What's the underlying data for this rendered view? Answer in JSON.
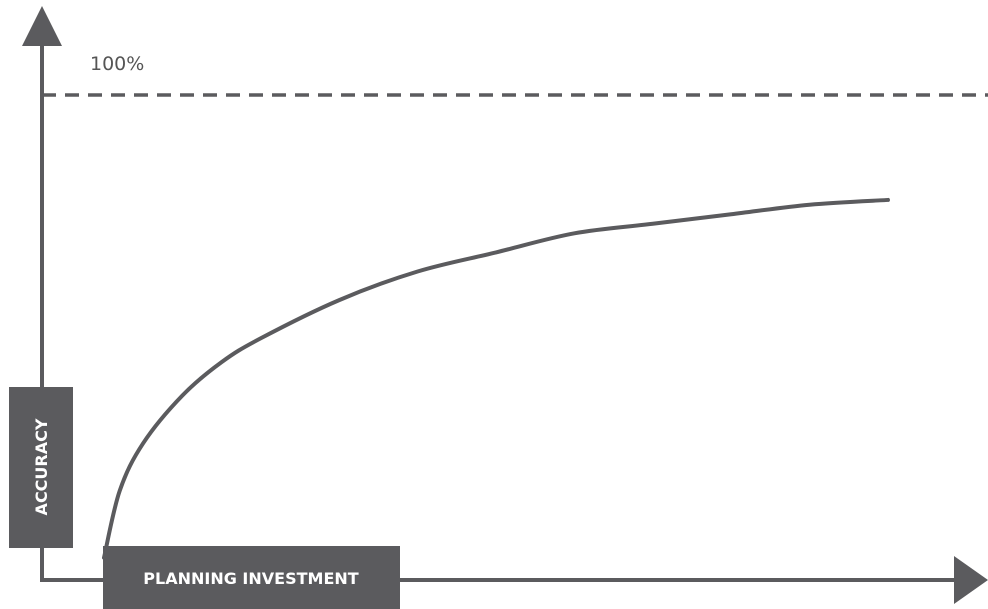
{
  "chart_data": {
    "type": "line",
    "title": "",
    "xlabel": "PLANNING INVESTMENT",
    "ylabel": "ACCURACY",
    "xlim": [
      0,
      100
    ],
    "ylim": [
      0,
      100
    ],
    "grid": false,
    "reference_line": {
      "y": 100,
      "label": "100%",
      "style": "dashed"
    },
    "series": [
      {
        "x": [
          0,
          2,
          5,
          10,
          15,
          20,
          30,
          40,
          50,
          60,
          70,
          80,
          90,
          100
        ],
        "values": [
          3,
          17,
          27,
          37,
          44,
          49,
          57,
          63,
          67,
          71,
          73,
          75,
          77,
          78
        ]
      }
    ]
  },
  "colors": {
    "axis": "#5b5b5e",
    "curve": "#5b5b5e",
    "label_box": "#5b5b5e",
    "label_text": "#ffffff",
    "reference_line": "#5b5b5e"
  }
}
